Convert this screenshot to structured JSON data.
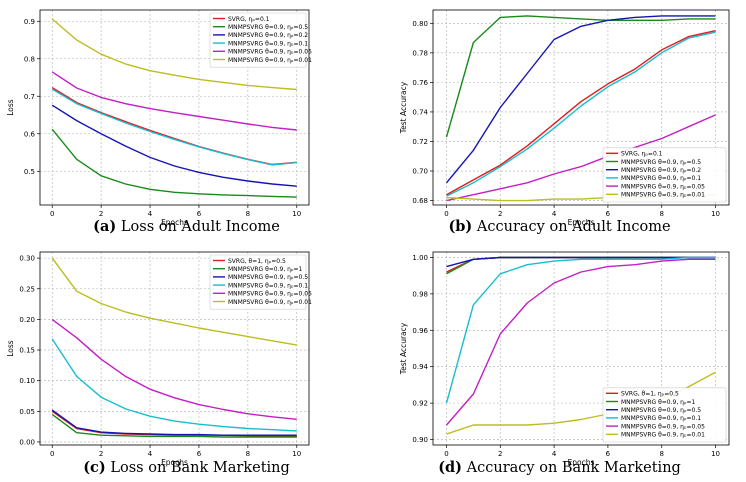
{
  "figure": {
    "captions": [
      {
        "tag": "(a)",
        "text": "Loss on Adult Income"
      },
      {
        "tag": "(b)",
        "text": "Accuracy on Adult Income"
      },
      {
        "tag": "(c)",
        "text": "Loss on Bank Marketing"
      },
      {
        "tag": "(d)",
        "text": "Accuracy on Bank Marketing"
      }
    ]
  },
  "chart_data": [
    {
      "type": "line",
      "title": "",
      "xlabel": "Epochs",
      "ylabel": "Loss",
      "xlim": [
        -0.5,
        10.5
      ],
      "ylim": [
        0.41,
        0.93
      ],
      "xticks": [
        0,
        2,
        4,
        6,
        8,
        10
      ],
      "yticks": [
        0.5,
        0.6,
        0.7,
        0.8,
        0.9
      ],
      "ytick_labels": [
        "0.5",
        "0.6",
        "0.7",
        "0.8",
        "0.9"
      ],
      "grid": true,
      "legend_position": "top-right",
      "x": [
        0,
        1,
        2,
        3,
        4,
        5,
        6,
        7,
        8,
        9,
        10
      ],
      "series": [
        {
          "name": "SVRG, ηₚ=0.1",
          "color": "#e41a1c",
          "values": [
            0.723,
            0.683,
            0.656,
            0.632,
            0.609,
            0.587,
            0.566,
            0.548,
            0.532,
            0.518,
            0.524
          ]
        },
        {
          "name": "MNMPSVRG θ=0.9, ηₚ=0.5",
          "color": "#1a8a1a",
          "values": [
            0.612,
            0.532,
            0.488,
            0.466,
            0.452,
            0.444,
            0.44,
            0.437,
            0.435,
            0.433,
            0.431
          ]
        },
        {
          "name": "MNMPSVRG θ=0.9, ηₚ=0.2",
          "color": "#1414b4",
          "values": [
            0.676,
            0.635,
            0.6,
            0.567,
            0.537,
            0.514,
            0.497,
            0.484,
            0.474,
            0.466,
            0.46
          ]
        },
        {
          "name": "MNMPSVRG θ=0.9, ηₚ=0.1",
          "color": "#17becf",
          "values": [
            0.719,
            0.68,
            0.654,
            0.629,
            0.606,
            0.585,
            0.565,
            0.547,
            0.531,
            0.517,
            0.523
          ]
        },
        {
          "name": "MNMPSVRG θ=0.9, ηₚ=0.05",
          "color": "#c41ec4",
          "values": [
            0.765,
            0.722,
            0.697,
            0.68,
            0.667,
            0.656,
            0.646,
            0.636,
            0.626,
            0.617,
            0.61
          ]
        },
        {
          "name": "MNMPSVRG θ=0.9, ηₚ=0.01",
          "color": "#bcbd22",
          "values": [
            0.906,
            0.85,
            0.812,
            0.786,
            0.768,
            0.756,
            0.745,
            0.737,
            0.729,
            0.723,
            0.718
          ]
        }
      ]
    },
    {
      "type": "line",
      "title": "",
      "xlabel": "Epochs",
      "ylabel": "Test Accuracy",
      "xlim": [
        -0.5,
        10.5
      ],
      "ylim": [
        0.677,
        0.809
      ],
      "xticks": [
        0,
        2,
        4,
        6,
        8,
        10
      ],
      "yticks": [
        0.68,
        0.7,
        0.72,
        0.74,
        0.76,
        0.78,
        0.8
      ],
      "ytick_labels": [
        "0.68",
        "0.70",
        "0.72",
        "0.74",
        "0.76",
        "0.78",
        "0.80"
      ],
      "grid": true,
      "legend_position": "bottom-right",
      "x": [
        0,
        1,
        2,
        3,
        4,
        5,
        6,
        7,
        8,
        9,
        10
      ],
      "series": [
        {
          "name": "SVRG, ηₚ=0.1",
          "color": "#e41a1c",
          "values": [
            0.684,
            0.694,
            0.704,
            0.717,
            0.732,
            0.747,
            0.759,
            0.769,
            0.782,
            0.791,
            0.795
          ]
        },
        {
          "name": "MNMPSVRG θ=0.9, ηₚ=0.5",
          "color": "#1a8a1a",
          "values": [
            0.723,
            0.787,
            0.804,
            0.805,
            0.804,
            0.803,
            0.802,
            0.802,
            0.802,
            0.803,
            0.803
          ]
        },
        {
          "name": "MNMPSVRG θ=0.9, ηₚ=0.2",
          "color": "#1414b4",
          "values": [
            0.692,
            0.714,
            0.743,
            0.766,
            0.789,
            0.798,
            0.802,
            0.804,
            0.805,
            0.805,
            0.805
          ]
        },
        {
          "name": "MNMPSVRG θ=0.9, ηₚ=0.1",
          "color": "#17becf",
          "values": [
            0.683,
            0.692,
            0.703,
            0.715,
            0.729,
            0.744,
            0.757,
            0.767,
            0.78,
            0.79,
            0.794
          ]
        },
        {
          "name": "MNMPSVRG θ=0.9, ηₚ=0.05",
          "color": "#c41ec4",
          "values": [
            0.68,
            0.684,
            0.688,
            0.692,
            0.698,
            0.703,
            0.71,
            0.716,
            0.722,
            0.73,
            0.738
          ]
        },
        {
          "name": "MNMPSVRG θ=0.9, ηₚ=0.01",
          "color": "#bcbd22",
          "values": [
            0.682,
            0.681,
            0.68,
            0.68,
            0.681,
            0.681,
            0.682,
            0.682,
            0.683,
            0.683,
            0.684
          ]
        }
      ]
    },
    {
      "type": "line",
      "title": "",
      "xlabel": "Epochs",
      "ylabel": "Loss",
      "xlim": [
        -0.5,
        10.5
      ],
      "ylim": [
        -0.005,
        0.31
      ],
      "xticks": [
        0,
        2,
        4,
        6,
        8,
        10
      ],
      "yticks": [
        0.0,
        0.05,
        0.1,
        0.15,
        0.2,
        0.25,
        0.3
      ],
      "ytick_labels": [
        "0.00",
        "0.05",
        "0.10",
        "0.15",
        "0.20",
        "0.25",
        "0.30"
      ],
      "grid": true,
      "legend_position": "top-right",
      "x": [
        0,
        1,
        2,
        3,
        4,
        5,
        6,
        7,
        8,
        9,
        10
      ],
      "series": [
        {
          "name": "SVRG, θ=1, ηₚ=0.5",
          "color": "#e41a1c",
          "values": [
            0.05,
            0.022,
            0.015,
            0.013,
            0.012,
            0.011,
            0.011,
            0.011,
            0.01,
            0.01,
            0.01
          ]
        },
        {
          "name": "MNMPSVRG θ=0.9, ηₚ=1",
          "color": "#1a8a1a",
          "values": [
            0.045,
            0.015,
            0.011,
            0.01,
            0.009,
            0.009,
            0.009,
            0.008,
            0.008,
            0.008,
            0.008
          ]
        },
        {
          "name": "MNMPSVRG θ=0.9, ηₚ=0.5",
          "color": "#1414b4",
          "values": [
            0.052,
            0.023,
            0.016,
            0.014,
            0.013,
            0.012,
            0.012,
            0.011,
            0.011,
            0.011,
            0.011
          ]
        },
        {
          "name": "MNMPSVRG θ=0.9, ηₚ=0.1",
          "color": "#17becf",
          "values": [
            0.168,
            0.107,
            0.073,
            0.054,
            0.042,
            0.034,
            0.029,
            0.025,
            0.022,
            0.02,
            0.018
          ]
        },
        {
          "name": "MNMPSVRG θ=0.9, ηₚ=0.05",
          "color": "#c41ec4",
          "values": [
            0.2,
            0.17,
            0.135,
            0.107,
            0.086,
            0.072,
            0.061,
            0.053,
            0.046,
            0.041,
            0.037
          ]
        },
        {
          "name": "MNMPSVRG θ=0.9, ηₚ=0.01",
          "color": "#bcbd22",
          "values": [
            0.3,
            0.246,
            0.226,
            0.212,
            0.202,
            0.194,
            0.186,
            0.179,
            0.172,
            0.165,
            0.158
          ]
        }
      ]
    },
    {
      "type": "line",
      "title": "",
      "xlabel": "Epochs",
      "ylabel": "Test Accuracy",
      "xlim": [
        -0.5,
        10.5
      ],
      "ylim": [
        0.897,
        1.003
      ],
      "xticks": [
        0,
        2,
        4,
        6,
        8,
        10
      ],
      "yticks": [
        0.9,
        0.92,
        0.94,
        0.96,
        0.98,
        1.0
      ],
      "ytick_labels": [
        "0.90",
        "0.92",
        "0.94",
        "0.96",
        "0.98",
        "1.00"
      ],
      "grid": true,
      "legend_position": "bottom-right",
      "x": [
        0,
        1,
        2,
        3,
        4,
        5,
        6,
        7,
        8,
        9,
        10
      ],
      "series": [
        {
          "name": "SVRG, θ=1, ηₚ=0.5",
          "color": "#e41a1c",
          "values": [
            0.992,
            0.999,
            1.0,
            1.0,
            1.0,
            1.0,
            1.0,
            1.0,
            1.0,
            1.0,
            1.0
          ]
        },
        {
          "name": "MNMPSVRG θ=0.9, ηₚ=1",
          "color": "#1a8a1a",
          "values": [
            0.991,
            0.999,
            1.0,
            1.0,
            1.0,
            1.0,
            1.0,
            1.0,
            1.0,
            1.0,
            1.0
          ]
        },
        {
          "name": "MNMPSVRG θ=0.9, ηₚ=0.5",
          "color": "#1414b4",
          "values": [
            0.995,
            0.999,
            1.0,
            1.0,
            1.0,
            1.0,
            1.0,
            1.0,
            1.0,
            1.0,
            1.0
          ]
        },
        {
          "name": "MNMPSVRG θ=0.9, ηₚ=0.1",
          "color": "#17becf",
          "values": [
            0.92,
            0.974,
            0.991,
            0.996,
            0.998,
            0.999,
            0.999,
            0.999,
            0.999,
            1.0,
            1.0
          ]
        },
        {
          "name": "MNMPSVRG θ=0.9, ηₚ=0.05",
          "color": "#c41ec4",
          "values": [
            0.908,
            0.925,
            0.958,
            0.975,
            0.986,
            0.992,
            0.995,
            0.996,
            0.998,
            0.999,
            0.999
          ]
        },
        {
          "name": "MNMPSVRG θ=0.9, ηₚ=0.01",
          "color": "#bcbd22",
          "values": [
            0.903,
            0.908,
            0.908,
            0.908,
            0.909,
            0.911,
            0.914,
            0.917,
            0.922,
            0.929,
            0.937
          ]
        }
      ]
    }
  ]
}
